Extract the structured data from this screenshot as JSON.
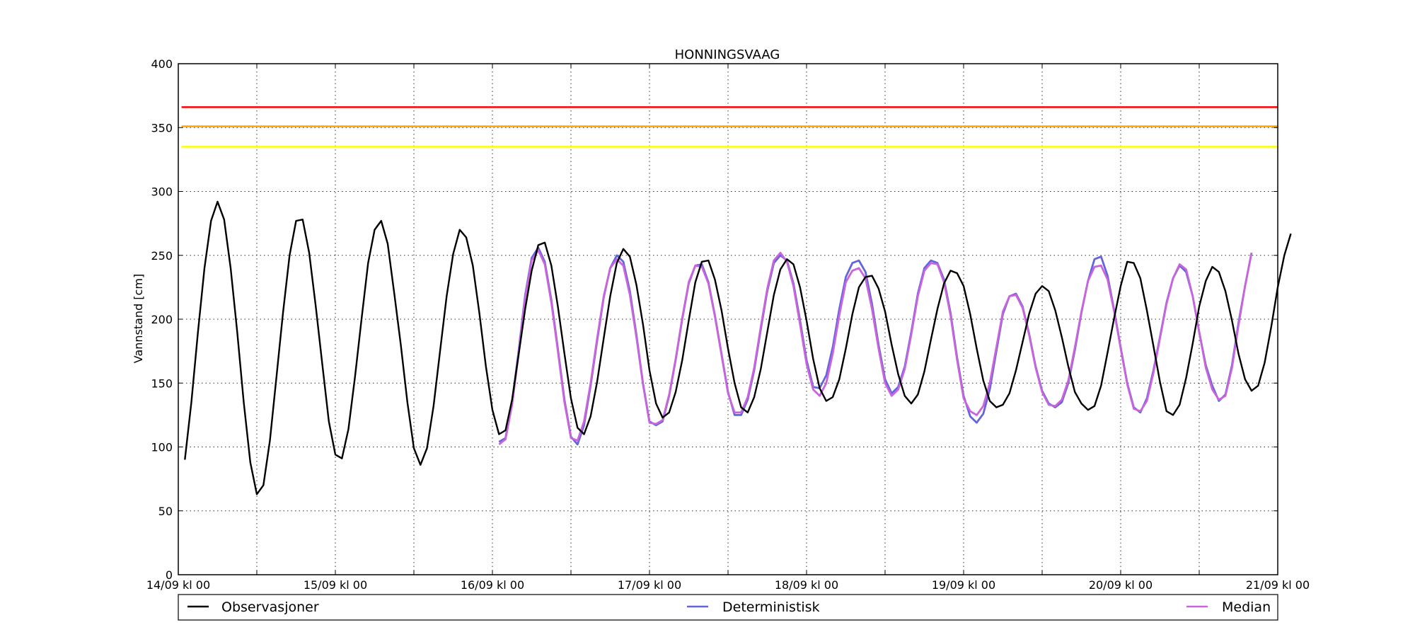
{
  "chart_data": {
    "type": "line",
    "title": "HONNINGSVAAG",
    "xlabel": "",
    "ylabel": "Vannstand [cm]",
    "ylim": [
      0,
      400
    ],
    "yticks": [
      0,
      50,
      100,
      150,
      200,
      250,
      300,
      350,
      400
    ],
    "xlim": [
      0,
      168
    ],
    "x_unit": "hours",
    "xticks": [
      {
        "x": 0,
        "label": "14/09 kl 00"
      },
      {
        "x": 12,
        "label": ""
      },
      {
        "x": 24,
        "label": "15/09 kl 00"
      },
      {
        "x": 36,
        "label": ""
      },
      {
        "x": 48,
        "label": "16/09 kl 00"
      },
      {
        "x": 60,
        "label": ""
      },
      {
        "x": 72,
        "label": "17/09 kl 00"
      },
      {
        "x": 84,
        "label": ""
      },
      {
        "x": 96,
        "label": "18/09 kl 00"
      },
      {
        "x": 108,
        "label": ""
      },
      {
        "x": 120,
        "label": "19/09 kl 00"
      },
      {
        "x": 132,
        "label": ""
      },
      {
        "x": 144,
        "label": "20/09 kl 00"
      },
      {
        "x": 156,
        "label": ""
      },
      {
        "x": 168,
        "label": "21/09 kl 00"
      }
    ],
    "grid": true,
    "legend_position": "bottom",
    "thresholds": [
      {
        "y": 366,
        "color": "#ff0000"
      },
      {
        "y": 351,
        "color": "#ffa500"
      },
      {
        "y": 335,
        "color": "#ffff00"
      }
    ],
    "series": [
      {
        "name": "Observasjoner",
        "color": "#000000",
        "start_x": 1,
        "values": [
          90,
          135,
          190,
          240,
          277,
          292,
          278,
          240,
          190,
          135,
          88,
          63,
          70,
          105,
          155,
          205,
          250,
          277,
          278,
          252,
          210,
          165,
          120,
          94,
          91,
          114,
          155,
          200,
          244,
          270,
          277,
          259,
          220,
          180,
          135,
          99,
          86,
          99,
          132,
          175,
          218,
          251,
          270,
          264,
          242,
          205,
          163,
          129,
          110,
          113,
          137,
          172,
          208,
          238,
          258,
          260,
          242,
          210,
          173,
          138,
          115,
          110,
          124,
          151,
          185,
          218,
          244,
          255,
          249,
          227,
          196,
          160,
          134,
          123,
          127,
          143,
          168,
          199,
          229,
          245,
          246,
          231,
          207,
          177,
          150,
          131,
          127,
          139,
          161,
          190,
          219,
          239,
          247,
          243,
          225,
          199,
          169,
          146,
          136,
          139,
          153,
          177,
          204,
          225,
          233,
          234,
          224,
          206,
          180,
          157,
          140,
          134,
          141,
          159,
          184,
          208,
          228,
          238,
          236,
          226,
          204,
          177,
          152,
          136,
          131,
          133,
          142,
          160,
          182,
          204,
          220,
          226,
          222,
          207,
          186,
          163,
          143,
          134,
          129,
          132,
          148,
          174,
          201,
          226,
          245,
          244,
          232,
          207,
          179,
          151,
          128,
          125,
          133,
          154,
          181,
          210,
          230,
          241,
          237,
          222,
          199,
          173,
          153,
          144,
          148,
          166,
          194,
          225,
          250,
          267
        ]
      },
      {
        "name": "Deterministisk",
        "color": "#6464dc",
        "start_x": 49,
        "values": [
          104,
          107,
          135,
          175,
          219,
          248,
          256,
          245,
          215,
          177,
          137,
          108,
          102,
          117,
          148,
          183,
          217,
          240,
          250,
          245,
          222,
          188,
          150,
          120,
          117,
          120,
          140,
          168,
          200,
          228,
          242,
          243,
          229,
          203,
          173,
          143,
          125,
          125,
          137,
          160,
          192,
          222,
          244,
          250,
          246,
          228,
          199,
          168,
          147,
          146,
          156,
          178,
          208,
          233,
          244,
          246,
          237,
          212,
          180,
          153,
          142,
          147,
          163,
          190,
          220,
          240,
          246,
          244,
          231,
          205,
          170,
          140,
          124,
          119,
          126,
          145,
          175,
          204,
          218,
          220,
          210,
          189,
          163,
          144,
          134,
          131,
          135,
          150,
          176,
          205,
          230,
          247,
          249,
          234,
          207,
          178,
          150,
          131,
          127,
          138,
          160,
          186,
          213,
          232,
          242,
          237,
          218,
          190,
          164,
          148,
          136,
          141,
          164,
          197,
          226,
          252
        ]
      },
      {
        "name": "Median",
        "color": "#c864dc",
        "start_x": 49,
        "values": [
          102,
          106,
          133,
          173,
          217,
          246,
          254,
          243,
          213,
          175,
          135,
          107,
          105,
          120,
          150,
          185,
          218,
          240,
          247,
          242,
          219,
          186,
          149,
          119,
          118,
          121,
          141,
          169,
          201,
          229,
          242,
          241,
          228,
          202,
          172,
          142,
          127,
          127,
          139,
          162,
          194,
          224,
          246,
          252,
          245,
          226,
          196,
          165,
          145,
          140,
          150,
          173,
          203,
          229,
          238,
          240,
          232,
          208,
          177,
          150,
          140,
          145,
          161,
          188,
          218,
          238,
          244,
          243,
          229,
          203,
          168,
          138,
          128,
          125,
          132,
          150,
          178,
          206,
          218,
          219,
          209,
          188,
          162,
          143,
          133,
          132,
          137,
          152,
          178,
          206,
          230,
          241,
          242,
          231,
          206,
          177,
          149,
          130,
          128,
          136,
          158,
          185,
          212,
          232,
          243,
          239,
          218,
          190,
          162,
          145,
          137,
          140,
          162,
          195,
          226,
          252
        ]
      }
    ]
  }
}
